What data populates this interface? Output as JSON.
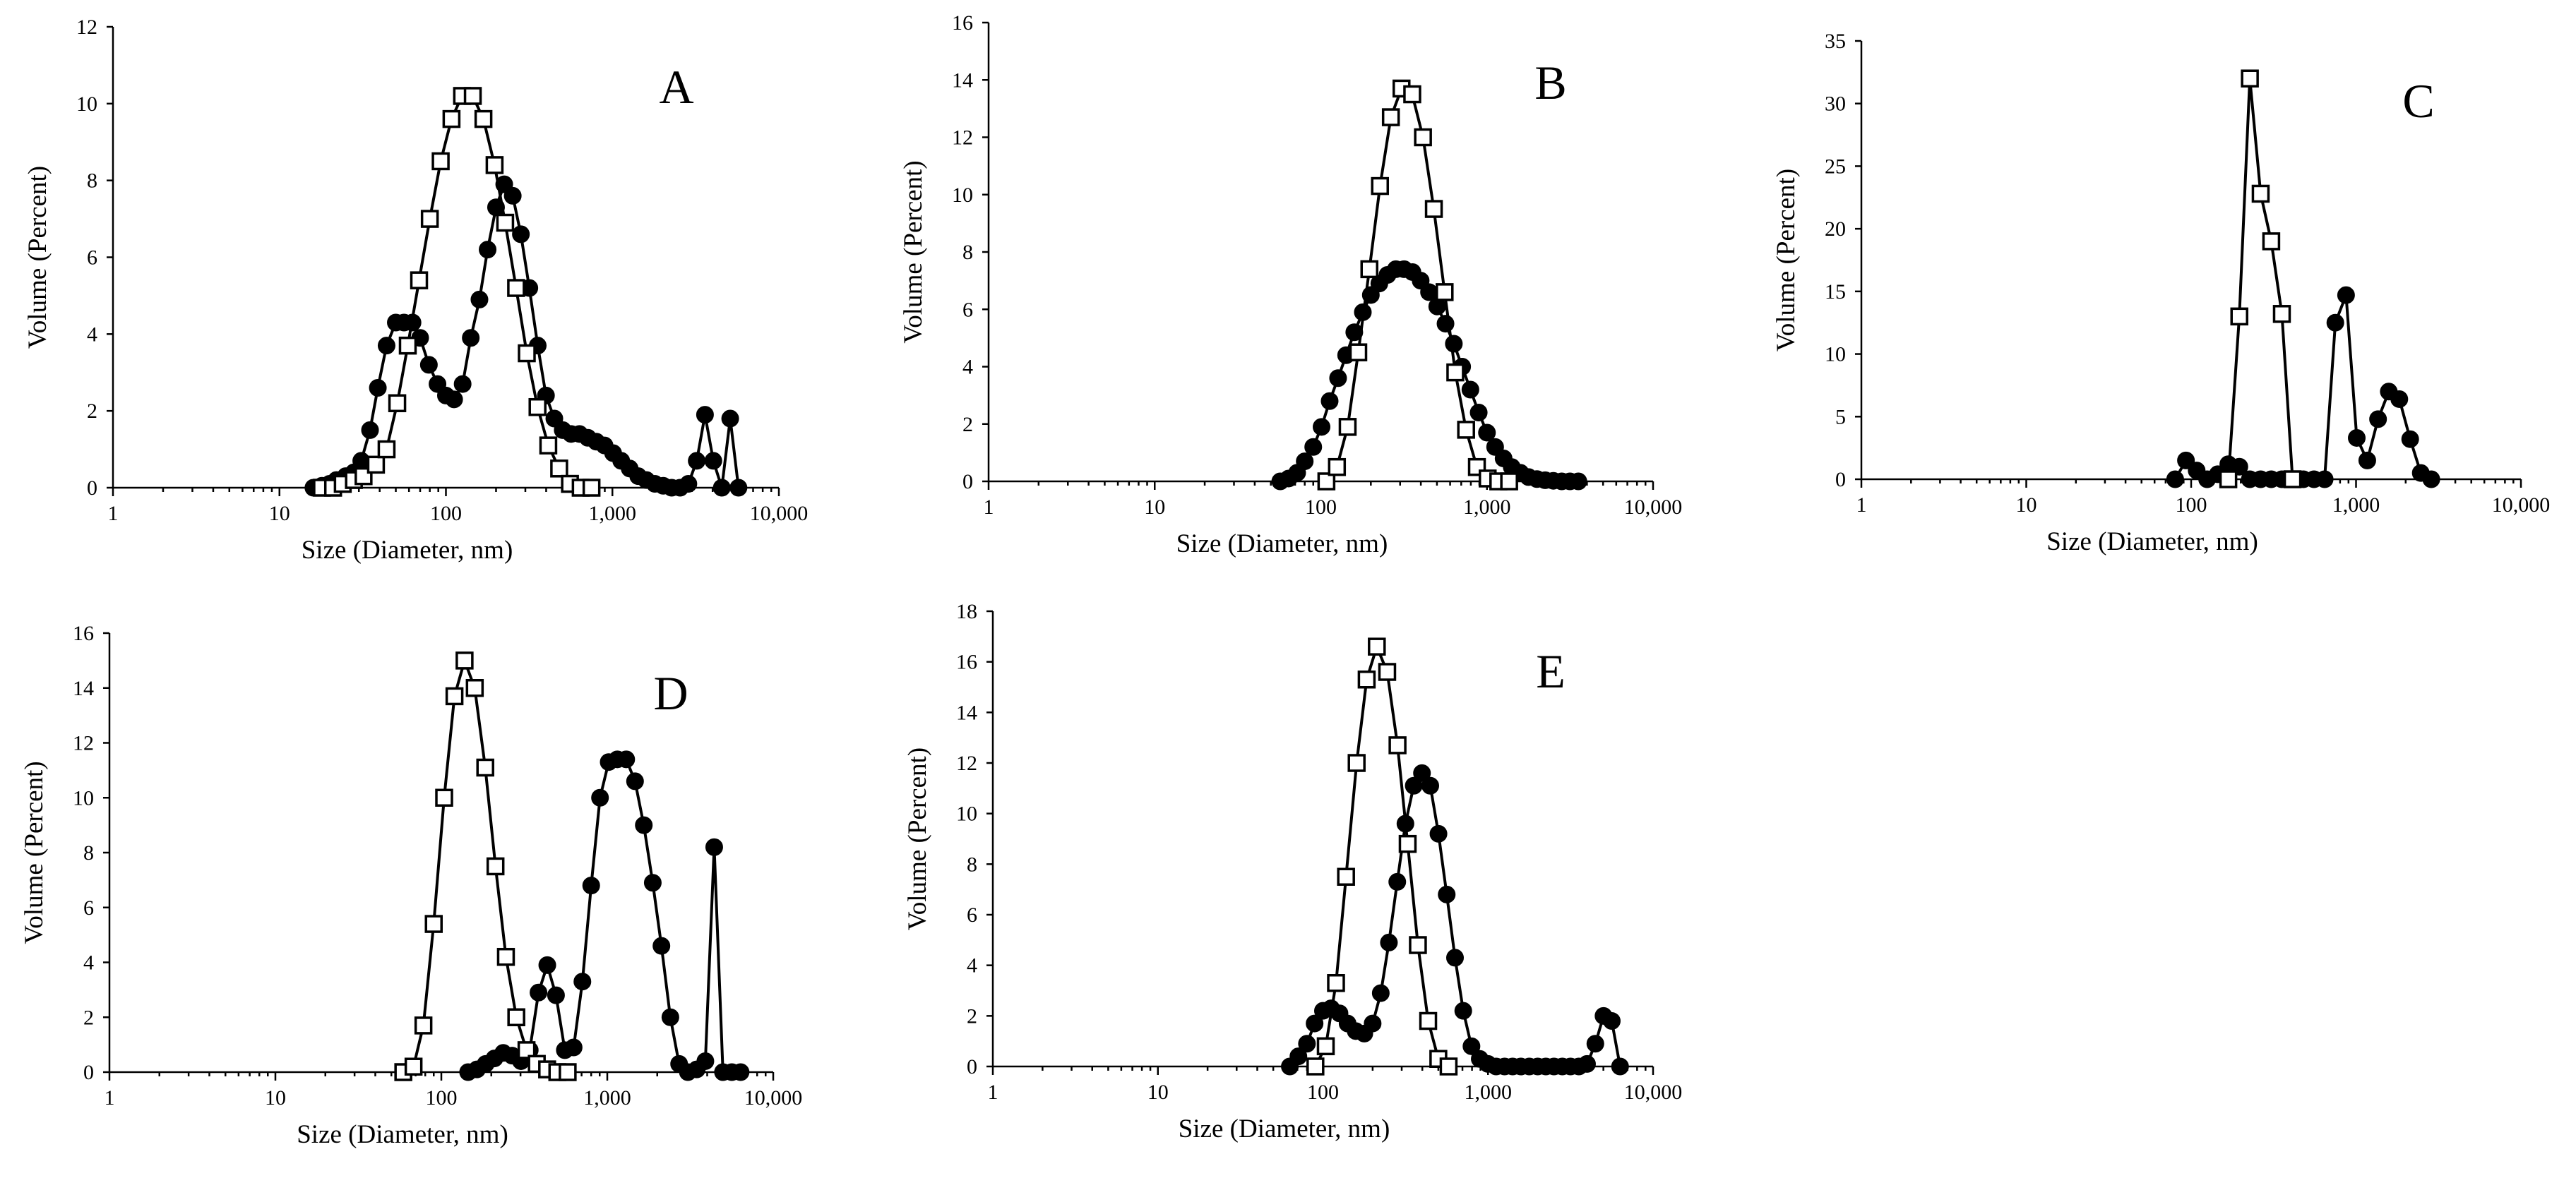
{
  "figure": {
    "series_styles": [
      {
        "name": "open squares",
        "marker": "square-open",
        "color": "#000000"
      },
      {
        "name": "filled circles",
        "marker": "circle-filled",
        "color": "#000000"
      }
    ]
  },
  "chart_data": [
    {
      "panel": "A",
      "type": "line",
      "xlabel": "Size (Diameter, nm)",
      "ylabel": "Volume (Percent)",
      "xscale": "log",
      "xlim": [
        1,
        10000
      ],
      "x_ticks": [
        1,
        10,
        100,
        1000,
        10000
      ],
      "x_tick_labels": [
        "1",
        "10",
        "100",
        "1,000",
        "10,000"
      ],
      "ylim": [
        0,
        12
      ],
      "y_ticks": [
        0,
        2,
        4,
        6,
        8,
        10,
        12
      ],
      "y_tick_labels": [
        "0",
        "2",
        "4",
        "6",
        "8",
        "10",
        "12"
      ],
      "series": [
        {
          "name": "open squares",
          "marker": "square-open",
          "x": [
            18,
            21,
            24,
            28,
            32,
            38,
            44,
            51,
            59,
            69,
            80,
            93,
            108,
            125,
            145,
            168,
            196,
            227,
            264,
            306,
            355,
            412,
            479,
            556,
            645,
            749
          ],
          "y": [
            0,
            0,
            0.1,
            0.2,
            0.3,
            0.6,
            1.0,
            2.2,
            3.7,
            5.4,
            7.0,
            8.5,
            9.6,
            10.2,
            10.2,
            9.6,
            8.4,
            6.9,
            5.2,
            3.5,
            2.1,
            1.1,
            0.5,
            0.1,
            0,
            0
          ]
        },
        {
          "name": "filled circles",
          "marker": "circle-filled",
          "x": [
            16,
            18,
            20,
            22,
            25,
            28,
            31,
            35,
            39,
            44,
            50,
            56,
            63,
            70,
            79,
            89,
            100,
            112,
            126,
            141,
            159,
            178,
            200,
            224,
            252,
            282,
            317,
            356,
            399,
            448,
            503,
            565,
            634,
            712,
            800,
            897,
            1010,
            1130,
            1270,
            1430,
            1600,
            1800,
            2020,
            2270,
            2550,
            2860,
            3210,
            3600,
            4040,
            4540,
            5100,
            5720
          ],
          "y": [
            0,
            0.05,
            0.1,
            0.2,
            0.3,
            0.4,
            0.7,
            1.5,
            2.6,
            3.7,
            4.3,
            4.3,
            4.3,
            3.9,
            3.2,
            2.7,
            2.4,
            2.3,
            2.7,
            3.9,
            4.9,
            6.2,
            7.3,
            7.9,
            7.6,
            6.6,
            5.2,
            3.7,
            2.4,
            1.8,
            1.5,
            1.4,
            1.4,
            1.3,
            1.2,
            1.1,
            0.9,
            0.7,
            0.5,
            0.3,
            0.2,
            0.1,
            0.05,
            0,
            0,
            0.1,
            0.7,
            1.9,
            0.7,
            0,
            1.8,
            0
          ]
        }
      ]
    },
    {
      "panel": "B",
      "type": "line",
      "xlabel": "Size (Diameter, nm)",
      "ylabel": "Volume (Percent)",
      "xscale": "log",
      "xlim": [
        1,
        10000
      ],
      "x_ticks": [
        1,
        10,
        100,
        1000,
        10000
      ],
      "x_tick_labels": [
        "1",
        "10",
        "100",
        "1,000",
        "10,000"
      ],
      "ylim": [
        0,
        16
      ],
      "y_ticks": [
        0,
        2,
        4,
        6,
        8,
        10,
        12,
        14,
        16
      ],
      "y_tick_labels": [
        "0",
        "2",
        "4",
        "6",
        "8",
        "10",
        "12",
        "14",
        "16"
      ],
      "series": [
        {
          "name": "open squares",
          "marker": "square-open",
          "x": [
            108,
            125,
            145,
            168,
            196,
            227,
            264,
            306,
            355,
            412,
            479,
            556,
            645,
            749,
            870,
            1010,
            1170,
            1360
          ],
          "y": [
            0,
            0.5,
            1.9,
            4.5,
            7.4,
            10.3,
            12.7,
            13.7,
            13.5,
            12.0,
            9.5,
            6.6,
            3.8,
            1.8,
            0.5,
            0.1,
            0,
            0
          ],
          "note": "first/last points approximate"
        },
        {
          "name": "filled circles",
          "marker": "circle-filled",
          "x": [
            57,
            64,
            72,
            80,
            90,
            101,
            113,
            127,
            142,
            159,
            179,
            200,
            225,
            252,
            283,
            317,
            356,
            399,
            448,
            502,
            563,
            632,
            709,
            795,
            892,
            1000,
            1120,
            1260,
            1410,
            1590,
            1780,
            2000,
            2240,
            2510,
            2820,
            3160,
            3550
          ],
          "y": [
            0,
            0.1,
            0.3,
            0.7,
            1.2,
            1.9,
            2.8,
            3.6,
            4.4,
            5.2,
            5.9,
            6.5,
            6.9,
            7.2,
            7.4,
            7.4,
            7.3,
            7.0,
            6.6,
            6.1,
            5.5,
            4.8,
            4.0,
            3.2,
            2.4,
            1.7,
            1.2,
            0.8,
            0.5,
            0.3,
            0.15,
            0.08,
            0.04,
            0.02,
            0,
            0,
            0
          ]
        }
      ]
    },
    {
      "panel": "C",
      "type": "line",
      "xlabel": "Size (Diameter, nm)",
      "ylabel": "Volume (Percent)",
      "xscale": "log",
      "xlim": [
        1,
        10000
      ],
      "x_ticks": [
        1,
        10,
        100,
        1000,
        10000
      ],
      "x_tick_labels": [
        "1",
        "10",
        "100",
        "1,000",
        "10,000"
      ],
      "ylim": [
        0,
        35
      ],
      "y_ticks": [
        0,
        5,
        10,
        15,
        20,
        25,
        30,
        35
      ],
      "y_tick_labels": [
        "0",
        "5",
        "10",
        "15",
        "20",
        "25",
        "30",
        "35"
      ],
      "series": [
        {
          "name": "open squares",
          "marker": "square-open",
          "x": [
            168,
            196,
            227,
            264,
            306,
            355,
            412
          ],
          "y": [
            0,
            13,
            32,
            22.8,
            19,
            13.2,
            0
          ]
        },
        {
          "name": "filled circles",
          "marker": "circle-filled",
          "x": [
            80,
            93,
            108,
            125,
            145,
            168,
            196,
            227,
            264,
            306,
            355,
            412,
            479,
            556,
            645,
            749,
            870,
            1010,
            1170,
            1360,
            1580,
            1830,
            2130,
            2470,
            2860
          ],
          "y": [
            0,
            1.5,
            0.7,
            0,
            0.4,
            1.2,
            1.0,
            0,
            0,
            0,
            0,
            0,
            0,
            0,
            0,
            12.5,
            14.7,
            3.3,
            1.5,
            4.8,
            7.0,
            6.4,
            3.2,
            0.5,
            0
          ]
        }
      ]
    },
    {
      "panel": "D",
      "type": "line",
      "xlabel": "Size (Diameter, nm)",
      "ylabel": "Volume (Percent)",
      "xscale": "log",
      "xlim": [
        1,
        10000
      ],
      "x_ticks": [
        1,
        10,
        100,
        1000,
        10000
      ],
      "x_tick_labels": [
        "1",
        "10",
        "100",
        "1,000",
        "10,000"
      ],
      "ylim": [
        0,
        16
      ],
      "y_ticks": [
        0,
        2,
        4,
        6,
        8,
        10,
        12,
        14,
        16
      ],
      "y_tick_labels": [
        "0",
        "2",
        "4",
        "6",
        "8",
        "10",
        "12",
        "14",
        "16"
      ],
      "series": [
        {
          "name": "open squares",
          "marker": "square-open",
          "x": [
            59,
            68,
            78,
            90,
            104,
            120,
            138,
            159,
            184,
            212,
            245,
            283,
            326,
            376,
            434,
            500,
            577
          ],
          "y": [
            0,
            0.2,
            1.7,
            5.4,
            10.0,
            13.7,
            15.0,
            14.0,
            11.1,
            7.5,
            4.2,
            2.0,
            0.8,
            0.3,
            0.1,
            0,
            0
          ]
        },
        {
          "name": "filled circles",
          "marker": "circle-filled",
          "x": [
            145,
            164,
            185,
            209,
            236,
            267,
            302,
            341,
            385,
            435,
            491,
            555,
            627,
            708,
            800,
            904,
            1020,
            1150,
            1300,
            1470,
            1660,
            1880,
            2120,
            2400,
            2710,
            3060,
            3460,
            3900,
            4410,
            4980,
            5630,
            6360
          ],
          "y": [
            0,
            0.1,
            0.3,
            0.5,
            0.7,
            0.6,
            0.4,
            0.8,
            2.9,
            3.9,
            2.8,
            0.8,
            0.9,
            3.3,
            6.8,
            10.0,
            11.3,
            11.4,
            11.4,
            10.6,
            9.0,
            6.9,
            4.6,
            2.0,
            0.3,
            0,
            0.1,
            0.4,
            8.2,
            0,
            0,
            0
          ]
        }
      ]
    },
    {
      "panel": "E",
      "type": "line",
      "xlabel": "Size (Diameter, nm)",
      "ylabel": "Volume (Percent)",
      "xscale": "log",
      "xlim": [
        1,
        10000
      ],
      "x_ticks": [
        1,
        10,
        100,
        1000,
        10000
      ],
      "x_tick_labels": [
        "1",
        "10",
        "100",
        "1,000",
        "10,000"
      ],
      "ylim": [
        0,
        18
      ],
      "y_ticks": [
        0,
        2,
        4,
        6,
        8,
        10,
        12,
        14,
        16,
        18
      ],
      "y_tick_labels": [
        "0",
        "2",
        "4",
        "6",
        "8",
        "10",
        "12",
        "14",
        "16",
        "18"
      ],
      "series": [
        {
          "name": "open squares",
          "marker": "square-open",
          "x": [
            90,
            104,
            120,
            138,
            160,
            184,
            212,
            245,
            283,
            326,
            376,
            434,
            500,
            577
          ],
          "y": [
            0,
            0.8,
            3.3,
            7.5,
            12.0,
            15.3,
            16.6,
            15.6,
            12.7,
            8.8,
            4.8,
            1.8,
            0.3,
            0
          ]
        },
        {
          "name": "filled circles",
          "marker": "circle-filled",
          "x": [
            63,
            71,
            80,
            89,
            100,
            112,
            126,
            141,
            158,
            178,
            200,
            224,
            251,
            282,
            316,
            355,
            398,
            447,
            501,
            562,
            631,
            708,
            794,
            891,
            1000,
            1120,
            1260,
            1410,
            1580,
            1780,
            2000,
            2240,
            2510,
            2820,
            3160,
            3550,
            3980,
            4470,
            5010,
            5620,
            6310
          ],
          "y": [
            0,
            0.4,
            0.9,
            1.7,
            2.2,
            2.3,
            2.1,
            1.7,
            1.4,
            1.3,
            1.7,
            2.9,
            4.9,
            7.3,
            9.6,
            11.1,
            11.6,
            11.1,
            9.2,
            6.8,
            4.3,
            2.2,
            0.8,
            0.3,
            0.1,
            0,
            0,
            0,
            0,
            0,
            0,
            0,
            0,
            0,
            0,
            0,
            0.1,
            0.9,
            2.0,
            1.8,
            0
          ]
        }
      ]
    }
  ]
}
